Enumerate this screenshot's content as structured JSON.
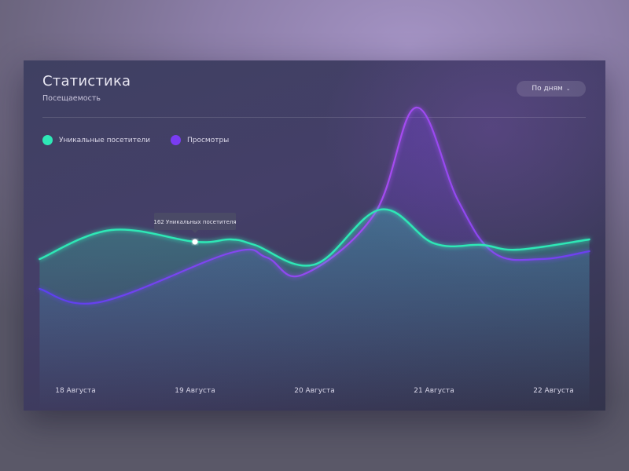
{
  "card": {
    "title": "Статистика",
    "subtitle": "Посещаемость",
    "period_button": "По дням",
    "period_chevron_icon": "chevron-down-icon"
  },
  "colors": {
    "unique": "#2ee8b6",
    "views": "#7a3cf2",
    "views_accent": "#a64cf0"
  },
  "tooltip": {
    "text": "162 Уникальных посетителя"
  },
  "chart_data": {
    "type": "line",
    "x": [
      "18 Августа",
      "19 Августа",
      "20 Августа",
      "21 Августа",
      "22 Августа"
    ],
    "series": [
      {
        "name": "Уникальные посетители",
        "color": "#2ee8b6",
        "points": [
          [
            -0.3,
            140
          ],
          [
            0.3,
            177
          ],
          [
            1.0,
            162
          ],
          [
            1.3,
            165
          ],
          [
            1.5,
            158
          ],
          [
            2.0,
            133
          ],
          [
            2.55,
            203
          ],
          [
            3.0,
            160
          ],
          [
            3.4,
            158
          ],
          [
            3.7,
            152
          ],
          [
            4.3,
            165
          ]
        ]
      },
      {
        "name": "Просмотры",
        "color": "#7a3cf2",
        "points": [
          [
            -0.3,
            102
          ],
          [
            0.2,
            85
          ],
          [
            1.3,
            148
          ],
          [
            1.6,
            142
          ],
          [
            1.9,
            120
          ],
          [
            2.5,
            197
          ],
          [
            2.85,
            333
          ],
          [
            3.2,
            215
          ],
          [
            3.5,
            148
          ],
          [
            3.9,
            140
          ],
          [
            4.3,
            150
          ]
        ]
      }
    ],
    "xlim": [
      -0.3,
      4.3
    ],
    "ylim": [
      0,
      360
    ],
    "legend": "top-left",
    "grid": false
  }
}
